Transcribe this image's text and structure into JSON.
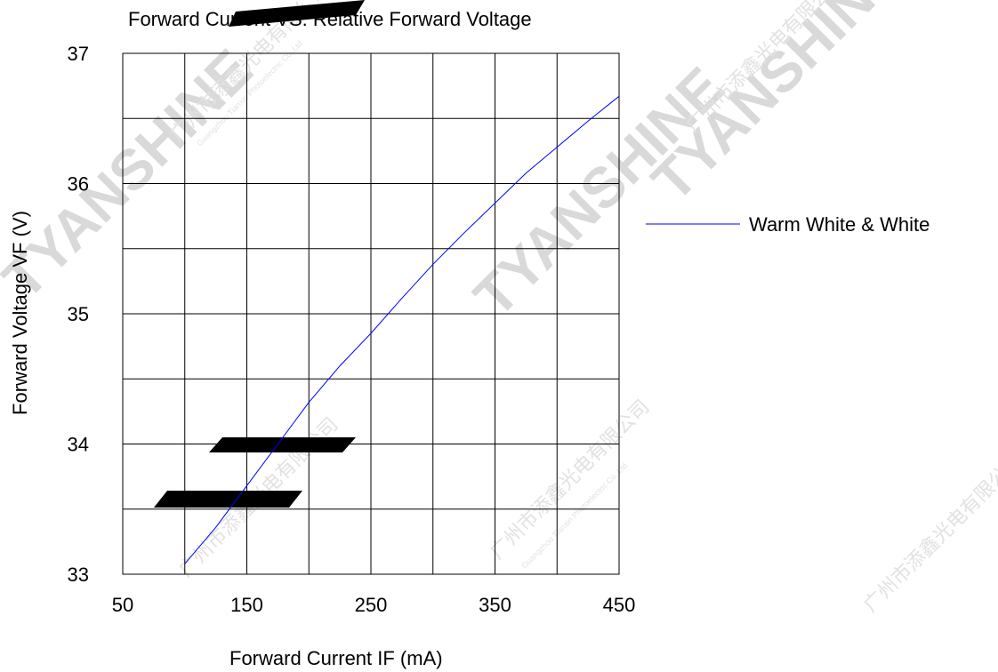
{
  "chart_data": {
    "type": "line",
    "title": "Forward Current VS.  Relative Forward Voltage",
    "xlabel": "Forward Current IF   (mA)",
    "ylabel": "Forward  Voltage  VF  (V)",
    "xlim": [
      50,
      450
    ],
    "ylim": [
      33,
      37
    ],
    "x_tick_labels": [
      "50",
      "150",
      "250",
      "350",
      "450"
    ],
    "y_tick_labels": [
      "33",
      "34",
      "35",
      "36",
      "37"
    ],
    "grid": true,
    "legend_position": "right",
    "series": [
      {
        "name": "Warm White & White",
        "color": "#0000ff",
        "x": [
          100,
          125,
          150,
          175,
          200,
          225,
          250,
          275,
          300,
          325,
          350,
          375,
          400,
          425,
          450
        ],
        "y": [
          33.08,
          33.36,
          33.68,
          34.0,
          34.32,
          34.6,
          34.85,
          35.12,
          35.38,
          35.62,
          35.85,
          36.08,
          36.28,
          36.48,
          36.67
        ]
      }
    ]
  },
  "watermark": {
    "brand": "TYANSHINE",
    "company_cn": "广州市添鑫光电有限公司",
    "company_en": "Guangzhou Tianxin Photoelectric Co.,Ltd"
  }
}
